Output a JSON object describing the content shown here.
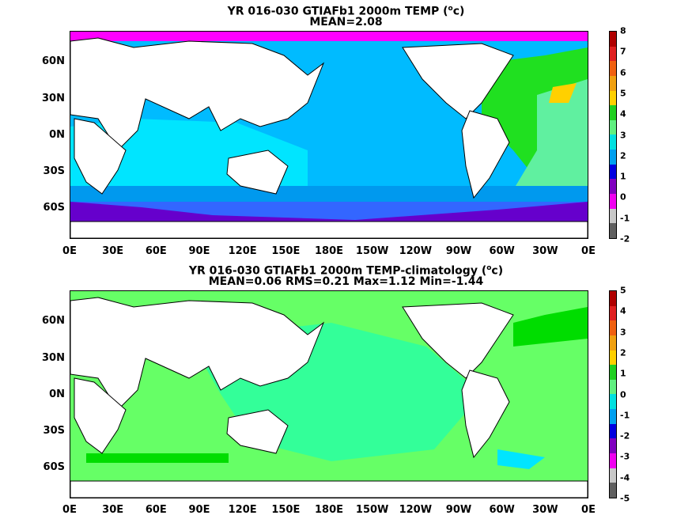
{
  "panels": [
    {
      "title_main": "YR 016-030 GTIAFb1 2000m TEMP (",
      "title_unit_sup": "o",
      "title_unit_end": "c)",
      "stats": "MEAN=2.08",
      "colorbar_ticks": [
        "8",
        "7",
        "6",
        "5",
        "4",
        "3",
        "2",
        "1",
        "0",
        "-1",
        "-2"
      ],
      "colorbar_colors": [
        "#b00000",
        "#e02020",
        "#f06010",
        "#f0a010",
        "#ffd000",
        "#20d020",
        "#60f080",
        "#00e0e0",
        "#00a0f0",
        "#0000e0",
        "#8000c0",
        "#f000f0",
        "#c8c8c8",
        "#606060"
      ],
      "field_colors": {
        "polar": "#ff00ff",
        "shelf": "#c8c8c8",
        "main": "#00bbff",
        "indian": "#00e5ff",
        "south": "#0099ee",
        "deep": "#3366ff",
        "core": "#6600cc",
        "atlantic": "#20e020",
        "hot": "#ffd000",
        "mid": "#60f0a0"
      }
    },
    {
      "title_main": "YR 016-030 GTIAFb1 2000m TEMP-climatology (",
      "title_unit_sup": "o",
      "title_unit_end": "c)",
      "stats": "MEAN=0.06   RMS=0.21   Max=1.12   Min=-1.44",
      "colorbar_ticks": [
        "5",
        "4",
        "3",
        "2",
        "1",
        "0",
        "-1",
        "-2",
        "-3",
        "-4",
        "-5"
      ],
      "colorbar_colors": [
        "#b00000",
        "#e02020",
        "#f06010",
        "#f0a010",
        "#ffd000",
        "#20d020",
        "#60f080",
        "#00e0e0",
        "#00a0f0",
        "#0000e0",
        "#8000c0",
        "#f000f0",
        "#c8c8c8",
        "#606060"
      ],
      "field_colors": {
        "base": "#66ff66",
        "pale": "#33ff99",
        "strong": "#00dd00",
        "cyan": "#00e5ff"
      }
    }
  ],
  "lat_labels": [
    "60N",
    "30N",
    "0N",
    "30S",
    "60S"
  ],
  "lon_labels": [
    "0E",
    "30E",
    "60E",
    "90E",
    "120E",
    "150E",
    "180E",
    "150W",
    "120W",
    "90W",
    "60W",
    "30W",
    "0E"
  ]
}
